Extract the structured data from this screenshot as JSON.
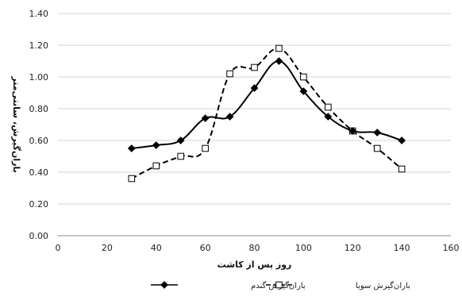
{
  "chart_data": {
    "type": "line",
    "xlabel": "روز پس از کاشت",
    "ylabel": "باران‌گیرش، سانتی‌متر",
    "xlim": [
      0,
      160
    ],
    "ylim": [
      0,
      1.4
    ],
    "x_ticks": [
      0,
      20,
      40,
      60,
      80,
      100,
      120,
      140,
      160
    ],
    "y_ticks": [
      "0.00",
      "0.20",
      "0.40",
      "0.60",
      "0.80",
      "1.00",
      "1.20",
      "1.40"
    ],
    "grid": "horizontal",
    "legend_position": "bottom",
    "series": [
      {
        "name": "باران‌گیرش گندم",
        "style": "solid",
        "marker": "filled-diamond",
        "color": "#000000",
        "x": [
          30,
          40,
          50,
          60,
          70,
          80,
          90,
          100,
          110,
          120,
          130,
          140
        ],
        "y": [
          0.55,
          0.57,
          0.6,
          0.74,
          0.75,
          0.93,
          1.1,
          0.91,
          0.75,
          0.66,
          0.65,
          0.6
        ]
      },
      {
        "name": "باران‌گیرش سویا",
        "style": "dashed",
        "marker": "open-square",
        "color": "#000000",
        "x": [
          30,
          40,
          50,
          60,
          70,
          80,
          90,
          100,
          110,
          120,
          130,
          140
        ],
        "y": [
          0.36,
          0.44,
          0.5,
          0.55,
          1.02,
          1.06,
          1.18,
          1.0,
          0.81,
          0.66,
          0.55,
          0.42
        ]
      }
    ]
  }
}
